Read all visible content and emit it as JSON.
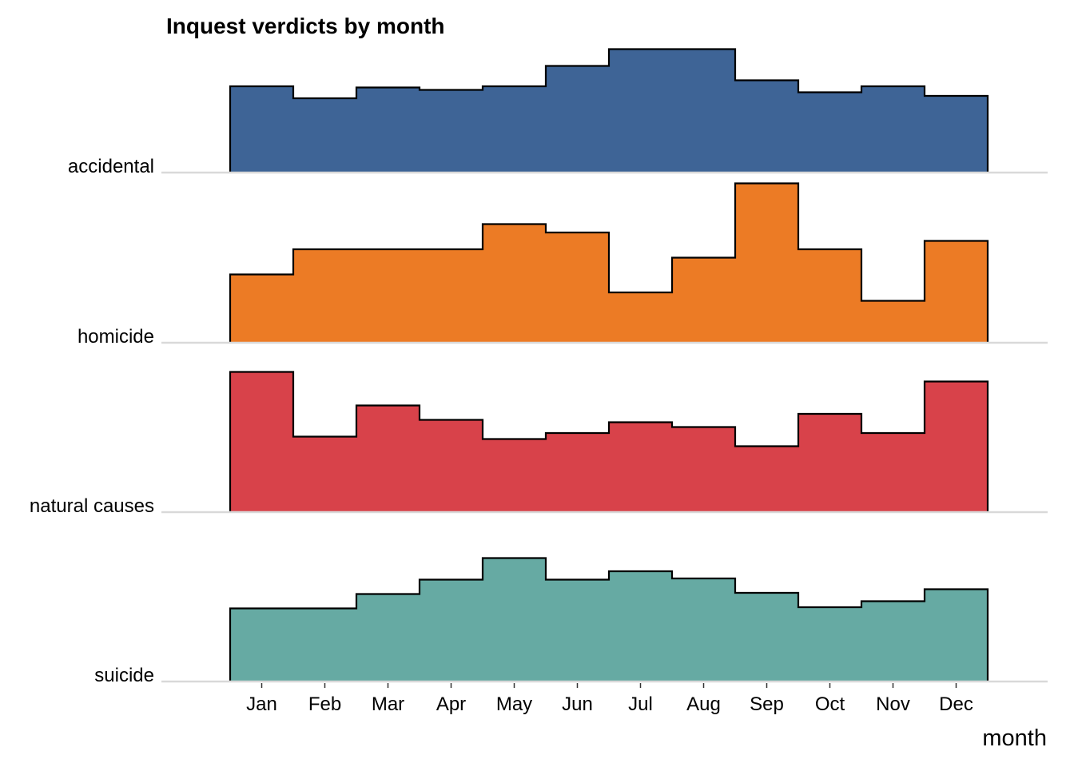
{
  "chart_data": {
    "type": "area",
    "subtype": "ridgeline-step",
    "title": "Inquest verdicts by month",
    "xlabel": "month",
    "ylabel": "",
    "categories": [
      "Jan",
      "Feb",
      "Mar",
      "Apr",
      "May",
      "Jun",
      "Jul",
      "Aug",
      "Sep",
      "Oct",
      "Nov",
      "Dec"
    ],
    "series": [
      {
        "name": "accidental",
        "color": "#3e6496",
        "values": [
          0.72,
          0.62,
          0.71,
          0.69,
          0.72,
          0.89,
          1.03,
          1.03,
          0.77,
          0.67,
          0.72,
          0.64
        ]
      },
      {
        "name": "homicide",
        "color": "#ec7b25",
        "values": [
          0.57,
          0.78,
          0.78,
          0.78,
          0.99,
          0.92,
          0.42,
          0.71,
          1.33,
          0.78,
          0.35,
          0.85
        ]
      },
      {
        "name": "natural causes",
        "color": "#d8424a",
        "values": [
          1.17,
          0.63,
          0.89,
          0.77,
          0.61,
          0.66,
          0.75,
          0.71,
          0.55,
          0.82,
          0.66,
          1.09
        ]
      },
      {
        "name": "suicide",
        "color": "#66aaa3",
        "values": [
          0.61,
          0.61,
          0.73,
          0.85,
          1.03,
          0.85,
          0.92,
          0.86,
          0.74,
          0.62,
          0.67,
          0.77
        ]
      }
    ],
    "grid": false,
    "legend": "none"
  }
}
